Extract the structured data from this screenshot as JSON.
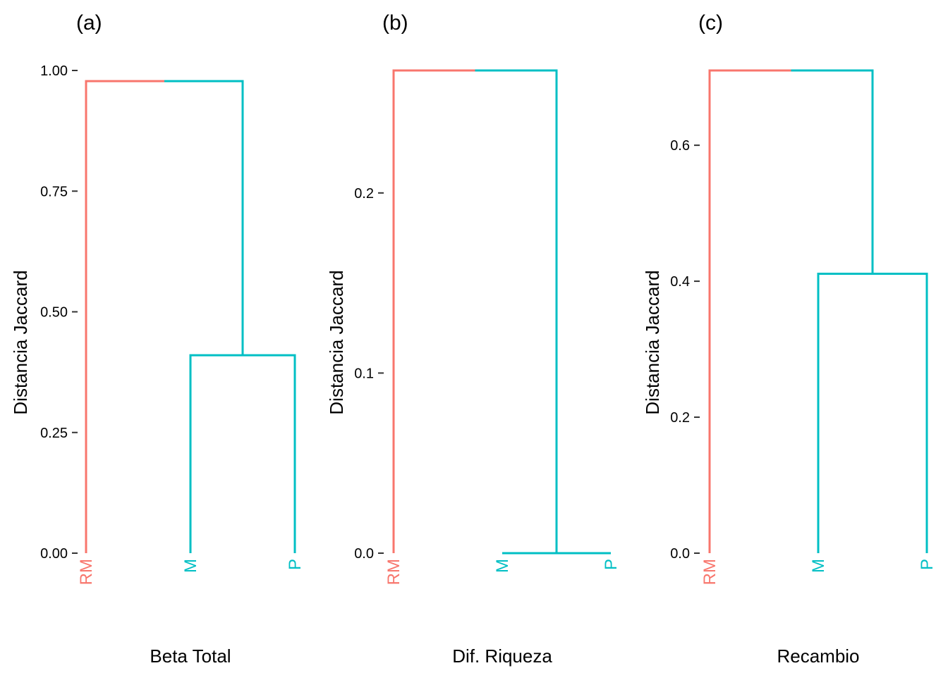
{
  "figure": {
    "background": "#ffffff"
  },
  "colors": {
    "cluster_1": "#F8766D",
    "cluster_2": "#00BFC4"
  },
  "chart_data": [
    {
      "type": "dendrogram",
      "panel": "(a)",
      "xlabel": "Beta Total",
      "ylabel": "Distancia Jaccard",
      "ylim": [
        0,
        1.0
      ],
      "yticks": [
        0.0,
        0.25,
        0.5,
        0.75,
        1.0
      ],
      "ytick_labels": [
        "0.00",
        "0.25",
        "0.50",
        "0.75",
        "1.00"
      ],
      "leaves": [
        {
          "label": "RM",
          "cluster": 1
        },
        {
          "label": "M",
          "cluster": 2
        },
        {
          "label": "P",
          "cluster": 2
        }
      ],
      "merges": [
        {
          "members": [
            "M",
            "P"
          ],
          "height": 0.41
        },
        {
          "members": [
            "RM",
            "M+P"
          ],
          "height": 0.978
        }
      ]
    },
    {
      "type": "dendrogram",
      "panel": "(b)",
      "xlabel": "Dif. Riqueza",
      "ylabel": "Distancia Jaccard",
      "ylim": [
        0,
        0.268
      ],
      "yticks": [
        0.0,
        0.1,
        0.2
      ],
      "ytick_labels": [
        "0.0",
        "0.1",
        "0.2"
      ],
      "leaves": [
        {
          "label": "RM",
          "cluster": 1
        },
        {
          "label": "M",
          "cluster": 2
        },
        {
          "label": "P",
          "cluster": 2
        }
      ],
      "merges": [
        {
          "members": [
            "M",
            "P"
          ],
          "height": 0.0
        },
        {
          "members": [
            "RM",
            "M+P"
          ],
          "height": 0.268
        }
      ]
    },
    {
      "type": "dendrogram",
      "panel": "(c)",
      "xlabel": "Recambio",
      "ylabel": "Distancia Jaccard",
      "ylim": [
        0,
        0.71
      ],
      "yticks": [
        0.0,
        0.2,
        0.4,
        0.6
      ],
      "ytick_labels": [
        "0.0",
        "0.2",
        "0.4",
        "0.6"
      ],
      "leaves": [
        {
          "label": "RM",
          "cluster": 1
        },
        {
          "label": "M",
          "cluster": 2
        },
        {
          "label": "P",
          "cluster": 2
        }
      ],
      "merges": [
        {
          "members": [
            "M",
            "P"
          ],
          "height": 0.411
        },
        {
          "members": [
            "RM",
            "M+P"
          ],
          "height": 0.71
        }
      ]
    }
  ]
}
